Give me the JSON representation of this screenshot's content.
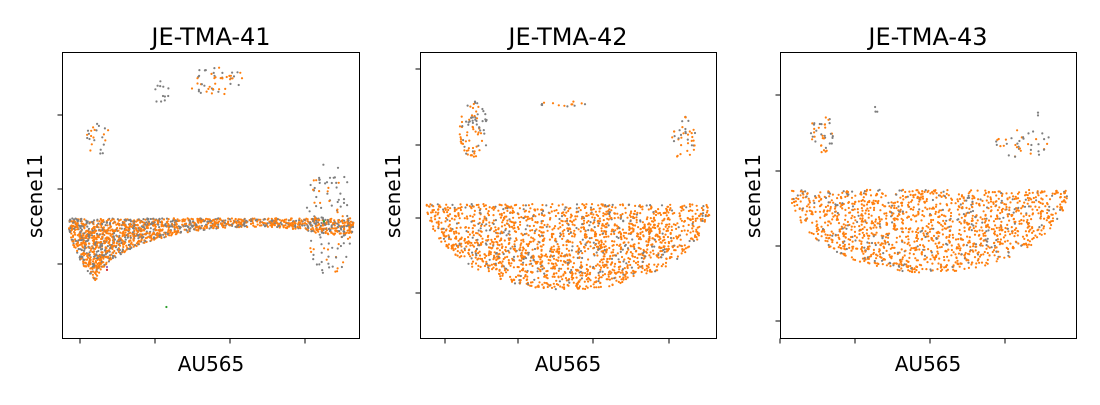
{
  "chart_data": [
    {
      "type": "scatter",
      "title": "JE-TMA-41",
      "xlabel": "AU565",
      "ylabel": "scene11",
      "xticks": 4,
      "yticks": 3,
      "tick_labels_shown": false,
      "grid": false,
      "colors": {
        "orange": "#ff7f0e",
        "gray": "#7f7f7f",
        "green": "#2ca02c",
        "purple": "#9467bd",
        "red": "#d62728"
      },
      "regions": [
        {
          "shape": "crescent",
          "cx": 0.5,
          "cy": 0.42,
          "rx": 0.48,
          "ry": 0.37,
          "inner_cx": 0.64,
          "inner_cy": 0.18,
          "inner_rx": 0.53,
          "inner_ry": 0.21,
          "n": 1700,
          "mix": {
            "orange": 0.66,
            "gray": 0.34
          }
        },
        {
          "shape": "ellipse",
          "cx": 0.52,
          "cy": 0.9,
          "rx": 0.1,
          "ry": 0.05,
          "n": 50,
          "mix": {
            "orange": 0.5,
            "gray": 0.5
          }
        },
        {
          "shape": "ellipse",
          "cx": 0.33,
          "cy": 0.86,
          "rx": 0.03,
          "ry": 0.04,
          "n": 12,
          "mix": {
            "gray": 1.0
          }
        },
        {
          "shape": "ellipse",
          "cx": 0.9,
          "cy": 0.42,
          "rx": 0.08,
          "ry": 0.2,
          "n": 110,
          "mix": {
            "gray": 0.7,
            "orange": 0.3
          }
        },
        {
          "shape": "ellipse",
          "cx": 0.12,
          "cy": 0.7,
          "rx": 0.04,
          "ry": 0.06,
          "n": 25,
          "mix": {
            "gray": 0.6,
            "orange": 0.4
          }
        }
      ],
      "rare_points": [
        {
          "x": 0.35,
          "y": 0.11,
          "color": "green"
        },
        {
          "x": 0.88,
          "y": 0.41,
          "color": "green"
        },
        {
          "x": 0.15,
          "y": 0.25,
          "color": "purple"
        },
        {
          "x": 0.15,
          "y": 0.24,
          "color": "red"
        },
        {
          "x": 0.93,
          "y": 0.33,
          "color": "orange"
        }
      ]
    },
    {
      "type": "scatter",
      "title": "JE-TMA-42",
      "xlabel": "AU565",
      "ylabel": "scene11",
      "xticks": 4,
      "yticks": 4,
      "tick_labels_shown": false,
      "grid": false,
      "colors": {
        "orange": "#ff7f0e",
        "gray": "#7f7f7f",
        "green": "#2ca02c",
        "purple": "#9467bd",
        "red": "#d62728"
      },
      "regions": [
        {
          "shape": "crescent",
          "cx": 0.5,
          "cy": 0.47,
          "rx": 0.48,
          "ry": 0.3,
          "inner_cx": 0.55,
          "inner_cy": 0.86,
          "inner_rx": 0.46,
          "inner_ry": 0.33,
          "n": 1900,
          "mix": {
            "orange": 0.85,
            "gray": 0.15
          }
        },
        {
          "shape": "ellipse",
          "cx": 0.18,
          "cy": 0.73,
          "rx": 0.05,
          "ry": 0.1,
          "n": 80,
          "mix": {
            "orange": 0.75,
            "gray": 0.25
          }
        },
        {
          "shape": "ellipse",
          "cx": 0.89,
          "cy": 0.7,
          "rx": 0.04,
          "ry": 0.08,
          "n": 40,
          "mix": {
            "orange": 0.7,
            "gray": 0.3
          }
        },
        {
          "shape": "ellipse",
          "cx": 0.18,
          "cy": 0.76,
          "rx": 0.018,
          "ry": 0.02,
          "n": 6,
          "mix": {
            "gray": 0.7,
            "orange": 0.3
          }
        },
        {
          "shape": "ellipse",
          "cx": 0.47,
          "cy": 0.82,
          "rx": 0.09,
          "ry": 0.01,
          "n": 14,
          "mix": {
            "orange": 0.7,
            "gray": 0.3
          }
        }
      ],
      "rare_points": []
    },
    {
      "type": "scatter",
      "title": "JE-TMA-43",
      "xlabel": "AU565",
      "ylabel": "scene11",
      "xticks": 4,
      "yticks": 4,
      "tick_labels_shown": false,
      "grid": false,
      "colors": {
        "orange": "#ff7f0e",
        "gray": "#7f7f7f",
        "green": "#2ca02c",
        "purple": "#9467bd",
        "red": "#d62728"
      },
      "regions": [
        {
          "shape": "crescent",
          "cx": 0.5,
          "cy": 0.52,
          "rx": 0.47,
          "ry": 0.29,
          "inner_cx": 0.58,
          "inner_cy": 0.85,
          "inner_rx": 0.46,
          "inner_ry": 0.28,
          "n": 1500,
          "mix": {
            "orange": 0.85,
            "gray": 0.15
          }
        },
        {
          "shape": "ellipse",
          "cx": 0.14,
          "cy": 0.72,
          "rx": 0.04,
          "ry": 0.07,
          "n": 40,
          "mix": {
            "orange": 0.5,
            "gray": 0.5
          }
        },
        {
          "shape": "ellipse",
          "cx": 0.82,
          "cy": 0.68,
          "rx": 0.1,
          "ry": 0.05,
          "n": 40,
          "mix": {
            "gray": 0.5,
            "orange": 0.5
          }
        },
        {
          "shape": "ellipse",
          "cx": 0.32,
          "cy": 0.8,
          "rx": 0.01,
          "ry": 0.01,
          "n": 3,
          "mix": {
            "gray": 1.0
          }
        }
      ],
      "rare_points": [
        {
          "x": 0.87,
          "y": 0.79,
          "color": "gray"
        },
        {
          "x": 0.87,
          "y": 0.78,
          "color": "gray"
        }
      ]
    }
  ]
}
